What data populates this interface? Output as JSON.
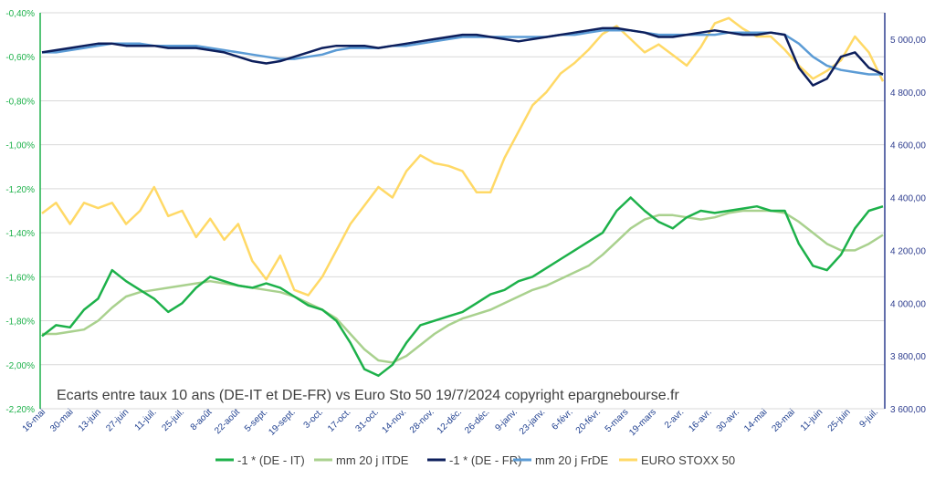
{
  "chart_data": {
    "type": "line",
    "title": "Ecarts entre taux 10 ans (DE-IT et DE-FR) vs Euro Sto 50 19/7/2024 copyright epargnebourse.fr",
    "grid": true,
    "legend_position": "bottom",
    "y_left": {
      "ylim": [
        -2.2,
        -0.4
      ],
      "ticks": [
        "-0,40%",
        "-0,60%",
        "-0,80%",
        "-1,00%",
        "-1,20%",
        "-1,40%",
        "-1,60%",
        "-1,80%",
        "-2,00%",
        "-2,20%"
      ],
      "tick_values": [
        -0.4,
        -0.6,
        -0.8,
        -1.0,
        -1.2,
        -1.4,
        -1.6,
        -1.8,
        -2.0,
        -2.2
      ]
    },
    "y_right": {
      "ylim": [
        3600,
        5100
      ],
      "ticks": [
        "5 000,00",
        "4 800,00",
        "4 600,00",
        "4 400,00",
        "4 200,00",
        "4 000,00",
        "3 800,00",
        "3 600,00"
      ],
      "tick_values": [
        5000,
        4800,
        4600,
        4400,
        4200,
        4000,
        3800,
        3600
      ]
    },
    "x_labels": [
      "16-mai",
      "30-mai",
      "13-juin",
      "27-juin",
      "11-juil.",
      "25-juil.",
      "8-août",
      "22-août",
      "5-sept.",
      "19-sept.",
      "3-oct.",
      "17-oct.",
      "31-oct.",
      "14-nov.",
      "28-nov.",
      "12-déc.",
      "26-déc.",
      "9-janv.",
      "23-janv.",
      "6-févr.",
      "20-févr.",
      "5-mars",
      "19-mars",
      "2-avr.",
      "16-avr.",
      "30-avr.",
      "14-mai",
      "28-mai",
      "11-juin",
      "25-juin",
      "9-juil."
    ],
    "series": [
      {
        "name": "-1 * (DE - IT)",
        "axis": "left",
        "color": "#1db14a",
        "values": [
          -1.87,
          -1.82,
          -1.83,
          -1.75,
          -1.7,
          -1.57,
          -1.62,
          -1.66,
          -1.7,
          -1.76,
          -1.72,
          -1.65,
          -1.6,
          -1.62,
          -1.64,
          -1.65,
          -1.63,
          -1.65,
          -1.69,
          -1.73,
          -1.75,
          -1.8,
          -1.9,
          -2.02,
          -2.05,
          -2.0,
          -1.9,
          -1.82,
          -1.8,
          -1.78,
          -1.76,
          -1.72,
          -1.68,
          -1.66,
          -1.62,
          -1.6,
          -1.56,
          -1.52,
          -1.48,
          -1.44,
          -1.4,
          -1.3,
          -1.24,
          -1.3,
          -1.35,
          -1.38,
          -1.33,
          -1.3,
          -1.31,
          -1.3,
          -1.29,
          -1.28,
          -1.3,
          -1.3,
          -1.45,
          -1.55,
          -1.57,
          -1.5,
          -1.38,
          -1.3,
          -1.28
        ]
      },
      {
        "name": "mm 20 j ITDE",
        "axis": "left",
        "color": "#a9d18e",
        "values": [
          -1.86,
          -1.86,
          -1.85,
          -1.84,
          -1.8,
          -1.74,
          -1.69,
          -1.67,
          -1.66,
          -1.65,
          -1.64,
          -1.63,
          -1.62,
          -1.63,
          -1.64,
          -1.65,
          -1.66,
          -1.67,
          -1.69,
          -1.72,
          -1.75,
          -1.79,
          -1.86,
          -1.93,
          -1.98,
          -1.99,
          -1.96,
          -1.91,
          -1.86,
          -1.82,
          -1.79,
          -1.77,
          -1.75,
          -1.72,
          -1.69,
          -1.66,
          -1.64,
          -1.61,
          -1.58,
          -1.55,
          -1.5,
          -1.44,
          -1.38,
          -1.34,
          -1.32,
          -1.32,
          -1.33,
          -1.34,
          -1.33,
          -1.31,
          -1.3,
          -1.3,
          -1.3,
          -1.31,
          -1.35,
          -1.4,
          -1.45,
          -1.48,
          -1.48,
          -1.45,
          -1.41
        ]
      },
      {
        "name": "-1 * (DE - FR)",
        "axis": "left",
        "color": "#0d1f5c",
        "values": [
          -0.58,
          -0.57,
          -0.56,
          -0.55,
          -0.54,
          -0.54,
          -0.55,
          -0.55,
          -0.55,
          -0.56,
          -0.56,
          -0.56,
          -0.57,
          -0.58,
          -0.6,
          -0.62,
          -0.63,
          -0.62,
          -0.6,
          -0.58,
          -0.56,
          -0.55,
          -0.55,
          -0.55,
          -0.56,
          -0.55,
          -0.54,
          -0.53,
          -0.52,
          -0.51,
          -0.5,
          -0.5,
          -0.51,
          -0.52,
          -0.53,
          -0.52,
          -0.51,
          -0.5,
          -0.49,
          -0.48,
          -0.47,
          -0.47,
          -0.48,
          -0.49,
          -0.51,
          -0.51,
          -0.5,
          -0.49,
          -0.48,
          -0.49,
          -0.5,
          -0.5,
          -0.49,
          -0.5,
          -0.65,
          -0.73,
          -0.7,
          -0.6,
          -0.58,
          -0.65,
          -0.68
        ]
      },
      {
        "name": "mm 20 j FrDE",
        "axis": "left",
        "color": "#5b9bd5",
        "values": [
          -0.58,
          -0.58,
          -0.57,
          -0.56,
          -0.55,
          -0.54,
          -0.54,
          -0.54,
          -0.55,
          -0.55,
          -0.55,
          -0.55,
          -0.56,
          -0.57,
          -0.58,
          -0.59,
          -0.6,
          -0.61,
          -0.61,
          -0.6,
          -0.59,
          -0.57,
          -0.56,
          -0.56,
          -0.56,
          -0.55,
          -0.55,
          -0.54,
          -0.53,
          -0.52,
          -0.51,
          -0.51,
          -0.51,
          -0.51,
          -0.51,
          -0.51,
          -0.51,
          -0.5,
          -0.5,
          -0.49,
          -0.48,
          -0.48,
          -0.48,
          -0.49,
          -0.5,
          -0.5,
          -0.5,
          -0.5,
          -0.5,
          -0.49,
          -0.49,
          -0.49,
          -0.49,
          -0.5,
          -0.54,
          -0.6,
          -0.64,
          -0.66,
          -0.67,
          -0.68,
          -0.68
        ]
      },
      {
        "name": "EURO STOXX 50",
        "axis": "right",
        "color": "#ffd966",
        "values": [
          4340,
          4380,
          4300,
          4380,
          4360,
          4380,
          4300,
          4350,
          4440,
          4330,
          4350,
          4250,
          4320,
          4240,
          4300,
          4160,
          4090,
          4180,
          4050,
          4030,
          4100,
          4200,
          4300,
          4370,
          4440,
          4400,
          4500,
          4560,
          4530,
          4520,
          4500,
          4420,
          4420,
          4550,
          4650,
          4750,
          4800,
          4870,
          4910,
          4960,
          5020,
          5050,
          5000,
          4950,
          4980,
          4940,
          4900,
          4970,
          5060,
          5080,
          5040,
          5010,
          5010,
          4960,
          4900,
          4850,
          4880,
          4920,
          5010,
          4950,
          4840
        ]
      }
    ]
  }
}
